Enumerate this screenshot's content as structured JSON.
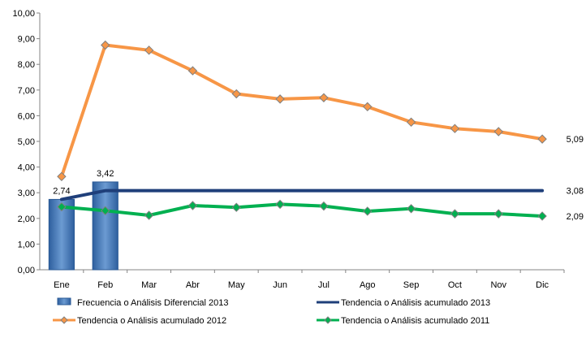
{
  "chart_data": {
    "type": "bar+line",
    "categories": [
      "Ene",
      "Feb",
      "Mar",
      "Abr",
      "May",
      "Jun",
      "Jul",
      "Ago",
      "Sep",
      "Oct",
      "Nov",
      "Dic"
    ],
    "ylim": [
      0,
      10
    ],
    "yticks": [
      "0,00",
      "1,00",
      "2,00",
      "3,00",
      "4,00",
      "5,00",
      "6,00",
      "7,00",
      "8,00",
      "9,00",
      "10,00"
    ],
    "grid": false,
    "legend_position": "bottom",
    "series": [
      {
        "name": "Frecuencia o Análisis Diferencial 2013",
        "kind": "bar",
        "color": "#4F81BD",
        "values": [
          2.74,
          3.42,
          null,
          null,
          null,
          null,
          null,
          null,
          null,
          null,
          null,
          null
        ],
        "labels": [
          "2,74",
          "3,42"
        ]
      },
      {
        "name": "Tendencia o Análisis acumulado 2013",
        "kind": "line",
        "color": "#1F3F7A",
        "values": [
          2.74,
          3.08,
          3.08,
          3.08,
          3.08,
          3.08,
          3.08,
          3.08,
          3.08,
          3.08,
          3.08,
          3.08
        ],
        "end_label": "3,08"
      },
      {
        "name": "Tendencia o Análisis acumulado 2012",
        "kind": "line",
        "marker": "diamond",
        "color": "#F79646",
        "values": [
          3.63,
          8.75,
          8.55,
          7.75,
          6.85,
          6.65,
          6.7,
          6.35,
          5.75,
          5.5,
          5.38,
          5.09
        ],
        "end_label": "5,09"
      },
      {
        "name": "Tendencia o Análisis acumulado 2011",
        "kind": "line",
        "marker": "diamond",
        "color": "#00B050",
        "values": [
          2.45,
          2.3,
          2.12,
          2.5,
          2.43,
          2.55,
          2.48,
          2.28,
          2.38,
          2.18,
          2.18,
          2.09
        ],
        "end_label": "2,09"
      }
    ]
  }
}
